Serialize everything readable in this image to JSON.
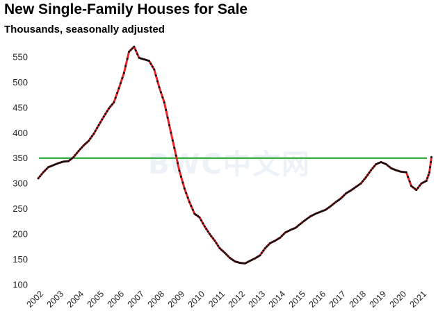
{
  "chart_data": {
    "type": "line",
    "title": "New Single-Family Houses for Sale",
    "subtitle": "Thousands, seasonally adjusted",
    "xlabel": "",
    "ylabel": "",
    "ylim": [
      100,
      580
    ],
    "xlim": [
      2002.0,
      2021.55
    ],
    "y_ticks": [
      100,
      150,
      200,
      250,
      300,
      350,
      400,
      450,
      500,
      550
    ],
    "x_tick_labels": [
      "2002",
      "2003",
      "2004",
      "2005",
      "2006",
      "2007",
      "2008",
      "2009",
      "2010",
      "2011",
      "2012",
      "2013",
      "2014",
      "2015",
      "2016",
      "2017",
      "2018",
      "2019",
      "2020",
      "2021"
    ],
    "grid": false,
    "reference_line": {
      "value": 350,
      "color": "#3cb34a"
    },
    "watermark": "BWC中文网",
    "series": [
      {
        "color_line": "#e8262a",
        "color_marker": "#111111",
        "x": [
          2002.0,
          2002.25,
          2002.5,
          2002.75,
          2003.0,
          2003.25,
          2003.5,
          2003.75,
          2004.0,
          2004.25,
          2004.5,
          2004.75,
          2005.0,
          2005.25,
          2005.5,
          2005.75,
          2006.0,
          2006.25,
          2006.5,
          2006.75,
          2007.0,
          2007.25,
          2007.5,
          2007.75,
          2008.0,
          2008.25,
          2008.5,
          2008.75,
          2009.0,
          2009.25,
          2009.5,
          2009.75,
          2010.0,
          2010.25,
          2010.5,
          2010.75,
          2011.0,
          2011.25,
          2011.5,
          2011.75,
          2012.0,
          2012.25,
          2012.5,
          2012.75,
          2013.0,
          2013.25,
          2013.5,
          2013.75,
          2014.0,
          2014.25,
          2014.5,
          2014.75,
          2015.0,
          2015.25,
          2015.5,
          2015.75,
          2016.0,
          2016.25,
          2016.5,
          2016.75,
          2017.0,
          2017.25,
          2017.5,
          2017.75,
          2018.0,
          2018.25,
          2018.5,
          2018.75,
          2019.0,
          2019.25,
          2019.5,
          2019.75,
          2020.0,
          2020.25,
          2020.5,
          2020.75,
          2021.0,
          2021.25,
          2021.4,
          2021.5
        ],
        "y": [
          310,
          322,
          332,
          336,
          340,
          343,
          344,
          352,
          364,
          375,
          384,
          398,
          415,
          432,
          448,
          460,
          488,
          518,
          560,
          570,
          548,
          545,
          542,
          525,
          490,
          460,
          415,
          370,
          325,
          290,
          263,
          240,
          233,
          215,
          200,
          187,
          172,
          163,
          153,
          146,
          143,
          142,
          147,
          152,
          158,
          172,
          182,
          187,
          193,
          203,
          208,
          212,
          220,
          228,
          235,
          240,
          244,
          248,
          255,
          263,
          270,
          280,
          286,
          293,
          300,
          312,
          326,
          338,
          342,
          338,
          330,
          326,
          323,
          322,
          295,
          287,
          300,
          305,
          322,
          352
        ]
      }
    ]
  }
}
